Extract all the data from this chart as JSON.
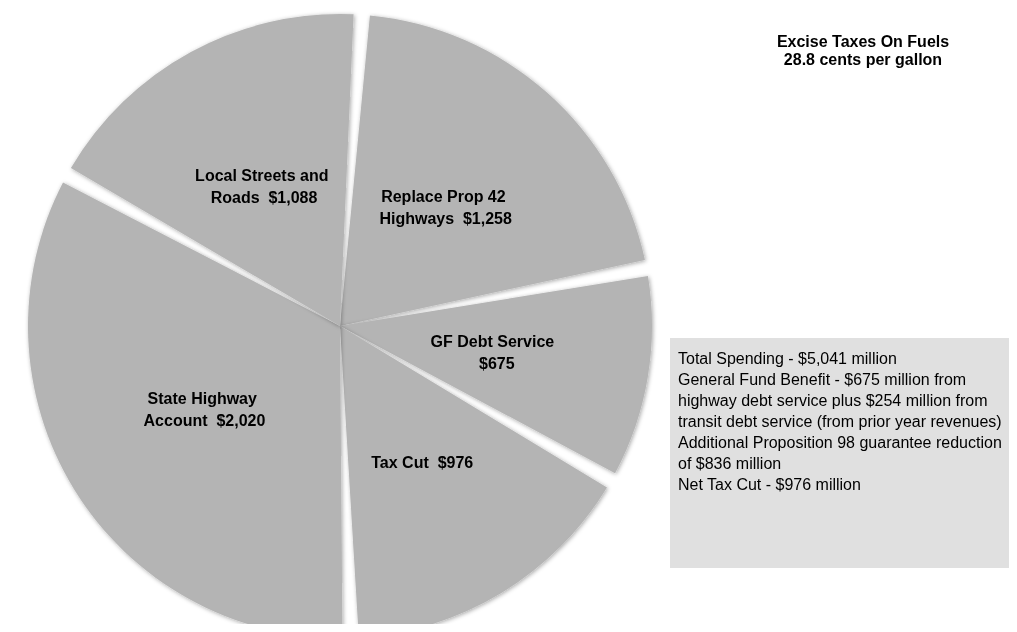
{
  "chart_data": {
    "type": "pie",
    "title": "Excise Taxes On Fuels",
    "subtitle": "28.8 cents per gallon",
    "categories": [
      "Replace Prop 42 Highways",
      "GF Debt Service",
      "Tax Cut",
      "State Highway Account",
      "Local Streets and Roads"
    ],
    "values": [
      1258,
      675,
      976,
      2020,
      1088
    ],
    "value_labels": [
      "$1,258",
      "$675",
      "$976",
      "$2,020",
      "$1,088"
    ],
    "colors": [
      "#b4b4b4",
      "#b4b4b4",
      "#b4b4b4",
      "#b4b4b4",
      "#b4b4b4"
    ],
    "legend": false,
    "annotations": [
      "Total Spending - $5,041 million",
      "General Fund Benefit - $675 million from highway debt service plus $254 million from transit debt service (from prior year revenues)",
      "Additional Proposition 98 guarantee reduction of $836 million",
      "Net Tax Cut - $976 million"
    ]
  }
}
